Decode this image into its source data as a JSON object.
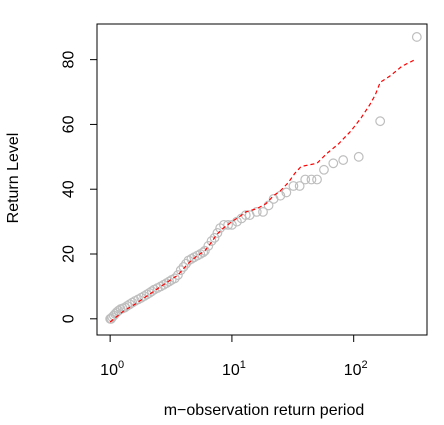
{
  "chart_data": {
    "type": "scatter",
    "title": "",
    "xlabel": "m−observation return period",
    "ylabel": "Return Level",
    "x_scale": "log10",
    "xlim": [
      0.78,
      400
    ],
    "ylim": [
      -5,
      91
    ],
    "x_ticks": [
      {
        "value": 1,
        "base": "10",
        "exp": "0"
      },
      {
        "value": 10,
        "base": "10",
        "exp": "1"
      },
      {
        "value": 100,
        "base": "10",
        "exp": "2"
      }
    ],
    "y_ticks": [
      {
        "value": 0,
        "label": "0"
      },
      {
        "value": 20,
        "label": "20"
      },
      {
        "value": 40,
        "label": "40"
      },
      {
        "value": 60,
        "label": "60"
      },
      {
        "value": 80,
        "label": "80"
      }
    ],
    "points_color": "#bebebe",
    "line_color": "#ff0000",
    "points": [
      [
        1.0,
        0
      ],
      [
        1.02,
        0
      ],
      [
        1.04,
        0.5
      ],
      [
        1.07,
        1
      ],
      [
        1.1,
        1.5
      ],
      [
        1.13,
        2
      ],
      [
        1.17,
        2.5
      ],
      [
        1.22,
        3
      ],
      [
        1.27,
        3.2
      ],
      [
        1.32,
        3.5
      ],
      [
        1.38,
        4
      ],
      [
        1.45,
        4.5
      ],
      [
        1.52,
        5
      ],
      [
        1.6,
        5.5
      ],
      [
        1.7,
        6
      ],
      [
        1.8,
        6.5
      ],
      [
        1.9,
        7
      ],
      [
        2.0,
        7.5
      ],
      [
        2.1,
        8
      ],
      [
        2.2,
        8.5
      ],
      [
        2.3,
        9
      ],
      [
        2.45,
        9.5
      ],
      [
        2.6,
        10
      ],
      [
        2.75,
        10.5
      ],
      [
        2.9,
        11
      ],
      [
        3.05,
        11.5
      ],
      [
        3.2,
        12
      ],
      [
        3.4,
        12.5
      ],
      [
        3.6,
        13.5
      ],
      [
        3.8,
        15
      ],
      [
        4.0,
        16
      ],
      [
        4.2,
        17
      ],
      [
        4.4,
        18
      ],
      [
        4.65,
        18.5
      ],
      [
        4.9,
        19
      ],
      [
        5.2,
        19.5
      ],
      [
        5.5,
        20
      ],
      [
        5.8,
        20.5
      ],
      [
        6.0,
        21
      ],
      [
        6.4,
        22.5
      ],
      [
        6.8,
        24
      ],
      [
        7.2,
        25
      ],
      [
        7.6,
        26.5
      ],
      [
        8.0,
        28
      ],
      [
        8.6,
        29
      ],
      [
        9.3,
        29
      ],
      [
        10.0,
        29
      ],
      [
        11.0,
        30
      ],
      [
        12.0,
        31
      ],
      [
        13.0,
        32
      ],
      [
        14.0,
        32
      ],
      [
        16.0,
        33
      ],
      [
        18.0,
        33
      ],
      [
        20.0,
        35
      ],
      [
        22.0,
        37
      ],
      [
        25.0,
        38
      ],
      [
        28.0,
        39
      ],
      [
        32.0,
        41
      ],
      [
        36.0,
        41
      ],
      [
        40.0,
        43
      ],
      [
        45.0,
        43
      ],
      [
        50.0,
        43
      ],
      [
        57.0,
        46
      ],
      [
        68.0,
        48
      ],
      [
        82.0,
        49
      ],
      [
        110.0,
        50
      ],
      [
        165.0,
        61
      ],
      [
        330.0,
        87
      ]
    ],
    "line": [
      [
        1.0,
        -1
      ],
      [
        1.3,
        2.5
      ],
      [
        1.6,
        4.5
      ],
      [
        2.0,
        7
      ],
      [
        2.5,
        9.5
      ],
      [
        3.0,
        11.5
      ],
      [
        3.6,
        13.5
      ],
      [
        4.0,
        15.5
      ],
      [
        4.5,
        17.5
      ],
      [
        5.2,
        19.5
      ],
      [
        6.0,
        21
      ],
      [
        6.6,
        23
      ],
      [
        7.5,
        26
      ],
      [
        8.5,
        28
      ],
      [
        10.0,
        30
      ],
      [
        11.5,
        31.5
      ],
      [
        13.0,
        33
      ],
      [
        16.0,
        34
      ],
      [
        19.0,
        35.5
      ],
      [
        22.0,
        38
      ],
      [
        25.0,
        39.5
      ],
      [
        29.0,
        42
      ],
      [
        33.0,
        45
      ],
      [
        37.0,
        47
      ],
      [
        43.0,
        47.5
      ],
      [
        50.0,
        48
      ],
      [
        60.0,
        51
      ],
      [
        75.0,
        54
      ],
      [
        95.0,
        58
      ],
      [
        115.0,
        62
      ],
      [
        135.0,
        66
      ],
      [
        150.0,
        69
      ],
      [
        165.0,
        73
      ],
      [
        200.0,
        75
      ],
      [
        250.0,
        78
      ],
      [
        320.0,
        80
      ]
    ]
  }
}
